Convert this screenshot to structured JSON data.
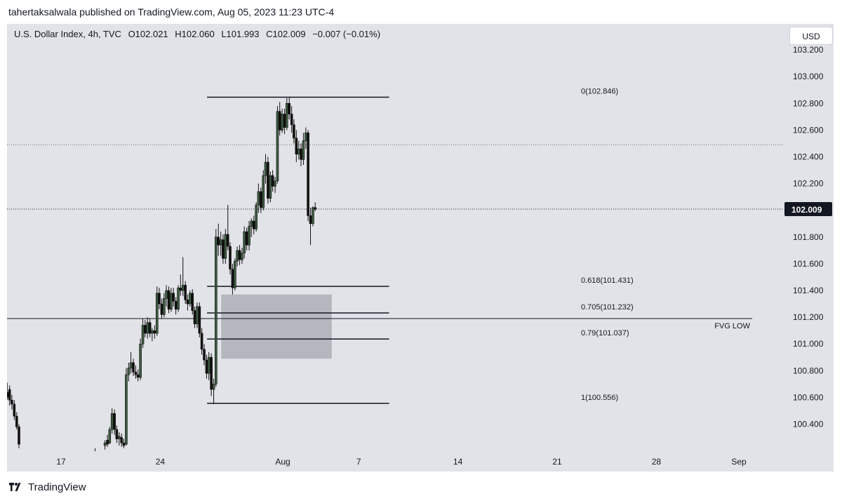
{
  "header": {
    "published_line": "tahertaksalwala published on TradingView.com, Aug 05, 2023 11:23 UTC-4"
  },
  "legend": {
    "symbol": "U.S. Dollar Index, 4h, TVC",
    "open": "O102.021",
    "high": "H102.060",
    "low": "L101.993",
    "close": "C102.009",
    "change": "−0.007 (−0.01%)"
  },
  "currency": "USD",
  "footer": {
    "brand": "TradingView",
    "logo_icon": "tradingview-logo-icon"
  },
  "colors": {
    "background": "#e2e3e8",
    "candle_up": "#3d5c42",
    "candle_down": "#111111",
    "zone_fill": "#a9abb1",
    "price_badge": "#131722"
  },
  "chart_data": {
    "type": "candlestick",
    "title": "U.S. Dollar Index, 4h, TVC",
    "ylim": [
      100.25,
      103.3
    ],
    "x_range_days": [
      13.2,
      35.2
    ],
    "y_ticks": [
      103.2,
      103.0,
      102.8,
      102.6,
      102.4,
      102.2,
      101.8,
      101.6,
      101.4,
      101.2,
      101.0,
      100.8,
      100.6,
      100.4
    ],
    "y_tick_labels": [
      "103.200",
      "103.000",
      "102.800",
      "102.600",
      "102.400",
      "102.200",
      "101.800",
      "101.600",
      "101.400",
      "101.200",
      "101.000",
      "100.800",
      "100.600",
      "100.400"
    ],
    "x_ticks": [
      {
        "label": "17",
        "day": 17
      },
      {
        "label": "24",
        "day": 24
      },
      {
        "label": "Aug",
        "day": 32
      },
      {
        "label": "7",
        "day": 38
      },
      {
        "label": "14",
        "day": 45
      },
      {
        "label": "21",
        "day": 52
      },
      {
        "label": "28",
        "day": 59
      },
      {
        "label": "Sep",
        "day": 63
      }
    ],
    "last_price": 102.009,
    "last_price_label": "102.009",
    "dotted_level": 102.49,
    "fib_levels": [
      {
        "label": "0(102.846)",
        "price": 102.846,
        "day_start": 27.3,
        "day_end": 40.0
      },
      {
        "label": "0.618(101.431)",
        "price": 101.431,
        "day_start": 27.3,
        "day_end": 40.0
      },
      {
        "label": "0.705(101.232)",
        "price": 101.232,
        "day_start": 27.3,
        "day_end": 40.0
      },
      {
        "label": "0.79(101.037)",
        "price": 101.037,
        "day_start": 27.3,
        "day_end": 40.0
      },
      {
        "label": "1(100.556)",
        "price": 100.556,
        "day_start": 27.3,
        "day_end": 40.0
      }
    ],
    "fvg_line": {
      "label": "FVG LOW",
      "price": 101.19
    },
    "zone": {
      "day_start": 28.3,
      "day_end": 36.1,
      "price_top": 101.37,
      "price_bottom": 100.89
    },
    "candles": [
      {
        "d": 13.2,
        "o": 100.64,
        "h": 100.71,
        "l": 100.58,
        "c": 100.6
      },
      {
        "d": 13.37,
        "o": 100.66,
        "h": 100.69,
        "l": 100.54,
        "c": 100.58
      },
      {
        "d": 13.53,
        "o": 100.58,
        "h": 100.62,
        "l": 100.51,
        "c": 100.55
      },
      {
        "d": 13.7,
        "o": 100.55,
        "h": 100.58,
        "l": 100.43,
        "c": 100.46
      },
      {
        "d": 13.87,
        "o": 100.46,
        "h": 100.49,
        "l": 100.36,
        "c": 100.38
      },
      {
        "d": 14.03,
        "o": 100.38,
        "h": 100.4,
        "l": 100.22,
        "c": 100.25
      },
      {
        "d": 15.2,
        "o": 100.1,
        "h": 100.15,
        "l": 100.02,
        "c": 100.08
      },
      {
        "d": 16.5,
        "o": 100.05,
        "h": 100.12,
        "l": 99.98,
        "c": 100.06
      },
      {
        "d": 18.0,
        "o": 100.08,
        "h": 100.13,
        "l": 100.0,
        "c": 100.1
      },
      {
        "d": 19.4,
        "o": 100.12,
        "h": 100.22,
        "l": 100.05,
        "c": 100.18
      },
      {
        "d": 20.1,
        "o": 100.24,
        "h": 100.28,
        "l": 100.21,
        "c": 100.26
      },
      {
        "d": 20.27,
        "o": 100.28,
        "h": 100.32,
        "l": 100.23,
        "c": 100.25
      },
      {
        "d": 20.43,
        "o": 100.26,
        "h": 100.38,
        "l": 100.25,
        "c": 100.36
      },
      {
        "d": 20.6,
        "o": 100.36,
        "h": 100.52,
        "l": 100.33,
        "c": 100.48
      },
      {
        "d": 20.77,
        "o": 100.48,
        "h": 100.51,
        "l": 100.32,
        "c": 100.36
      },
      {
        "d": 20.93,
        "o": 100.36,
        "h": 100.39,
        "l": 100.26,
        "c": 100.29
      },
      {
        "d": 21.1,
        "o": 100.29,
        "h": 100.34,
        "l": 100.24,
        "c": 100.31
      },
      {
        "d": 21.27,
        "o": 100.3,
        "h": 100.33,
        "l": 100.23,
        "c": 100.26
      },
      {
        "d": 21.43,
        "o": 100.26,
        "h": 100.29,
        "l": 100.22,
        "c": 100.24
      },
      {
        "d": 21.6,
        "o": 100.25,
        "h": 100.82,
        "l": 100.24,
        "c": 100.77
      },
      {
        "d": 21.77,
        "o": 100.77,
        "h": 100.86,
        "l": 100.72,
        "c": 100.82
      },
      {
        "d": 21.93,
        "o": 100.82,
        "h": 100.94,
        "l": 100.78,
        "c": 100.86
      },
      {
        "d": 22.1,
        "o": 100.86,
        "h": 100.89,
        "l": 100.76,
        "c": 100.79
      },
      {
        "d": 22.27,
        "o": 100.79,
        "h": 100.84,
        "l": 100.74,
        "c": 100.77
      },
      {
        "d": 22.43,
        "o": 100.77,
        "h": 100.81,
        "l": 100.72,
        "c": 100.75
      },
      {
        "d": 22.6,
        "o": 100.75,
        "h": 101.04,
        "l": 100.73,
        "c": 101.0
      },
      {
        "d": 22.77,
        "o": 101.0,
        "h": 101.19,
        "l": 100.97,
        "c": 101.14
      },
      {
        "d": 22.93,
        "o": 101.14,
        "h": 101.18,
        "l": 101.05,
        "c": 101.08
      },
      {
        "d": 23.1,
        "o": 101.08,
        "h": 101.2,
        "l": 101.04,
        "c": 101.16
      },
      {
        "d": 23.27,
        "o": 101.16,
        "h": 101.19,
        "l": 101.05,
        "c": 101.08
      },
      {
        "d": 23.43,
        "o": 101.08,
        "h": 101.12,
        "l": 101.02,
        "c": 101.1
      },
      {
        "d": 23.6,
        "o": 101.1,
        "h": 101.14,
        "l": 101.04,
        "c": 101.08
      },
      {
        "d": 23.77,
        "o": 101.08,
        "h": 101.43,
        "l": 101.06,
        "c": 101.38
      },
      {
        "d": 23.93,
        "o": 101.38,
        "h": 101.42,
        "l": 101.26,
        "c": 101.3
      },
      {
        "d": 24.1,
        "o": 101.3,
        "h": 101.34,
        "l": 101.19,
        "c": 101.22
      },
      {
        "d": 24.27,
        "o": 101.22,
        "h": 101.38,
        "l": 101.2,
        "c": 101.34
      },
      {
        "d": 24.43,
        "o": 101.34,
        "h": 101.44,
        "l": 101.28,
        "c": 101.4
      },
      {
        "d": 24.6,
        "o": 101.4,
        "h": 101.43,
        "l": 101.23,
        "c": 101.26
      },
      {
        "d": 24.77,
        "o": 101.26,
        "h": 101.42,
        "l": 101.24,
        "c": 101.38
      },
      {
        "d": 24.93,
        "o": 101.38,
        "h": 101.42,
        "l": 101.28,
        "c": 101.32
      },
      {
        "d": 25.1,
        "o": 101.32,
        "h": 101.35,
        "l": 101.22,
        "c": 101.26
      },
      {
        "d": 25.27,
        "o": 101.26,
        "h": 101.44,
        "l": 101.24,
        "c": 101.42
      },
      {
        "d": 25.43,
        "o": 101.42,
        "h": 101.52,
        "l": 101.36,
        "c": 101.4
      },
      {
        "d": 25.6,
        "o": 101.4,
        "h": 101.65,
        "l": 101.36,
        "c": 101.44
      },
      {
        "d": 25.77,
        "o": 101.44,
        "h": 101.47,
        "l": 101.3,
        "c": 101.33
      },
      {
        "d": 25.93,
        "o": 101.33,
        "h": 101.37,
        "l": 101.25,
        "c": 101.3
      },
      {
        "d": 26.1,
        "o": 101.3,
        "h": 101.4,
        "l": 101.28,
        "c": 101.38
      },
      {
        "d": 26.27,
        "o": 101.38,
        "h": 101.41,
        "l": 101.22,
        "c": 101.25
      },
      {
        "d": 26.43,
        "o": 101.25,
        "h": 101.28,
        "l": 101.12,
        "c": 101.15
      },
      {
        "d": 26.6,
        "o": 101.15,
        "h": 101.31,
        "l": 101.12,
        "c": 101.28
      },
      {
        "d": 26.77,
        "o": 101.28,
        "h": 101.31,
        "l": 101.05,
        "c": 101.08
      },
      {
        "d": 26.93,
        "o": 101.08,
        "h": 101.12,
        "l": 100.92,
        "c": 100.96
      },
      {
        "d": 27.1,
        "o": 100.96,
        "h": 101.0,
        "l": 100.84,
        "c": 100.88
      },
      {
        "d": 27.27,
        "o": 100.88,
        "h": 100.92,
        "l": 100.74,
        "c": 100.78
      },
      {
        "d": 27.43,
        "o": 100.78,
        "h": 100.94,
        "l": 100.73,
        "c": 100.9
      },
      {
        "d": 27.6,
        "o": 100.9,
        "h": 100.93,
        "l": 100.61,
        "c": 100.66
      },
      {
        "d": 27.77,
        "o": 100.66,
        "h": 100.74,
        "l": 100.55,
        "c": 100.7
      },
      {
        "d": 27.93,
        "o": 100.7,
        "h": 101.86,
        "l": 100.68,
        "c": 101.8
      },
      {
        "d": 28.1,
        "o": 101.8,
        "h": 101.9,
        "l": 101.66,
        "c": 101.74
      },
      {
        "d": 28.27,
        "o": 101.74,
        "h": 101.84,
        "l": 101.66,
        "c": 101.78
      },
      {
        "d": 28.43,
        "o": 101.78,
        "h": 101.82,
        "l": 101.6,
        "c": 101.64
      },
      {
        "d": 28.6,
        "o": 101.64,
        "h": 101.86,
        "l": 101.6,
        "c": 101.82
      },
      {
        "d": 28.77,
        "o": 101.82,
        "h": 102.04,
        "l": 101.7,
        "c": 101.73
      },
      {
        "d": 28.93,
        "o": 101.73,
        "h": 101.76,
        "l": 101.52,
        "c": 101.56
      },
      {
        "d": 29.1,
        "o": 101.56,
        "h": 101.6,
        "l": 101.37,
        "c": 101.42
      },
      {
        "d": 29.27,
        "o": 101.42,
        "h": 101.64,
        "l": 101.4,
        "c": 101.62
      },
      {
        "d": 29.43,
        "o": 101.62,
        "h": 101.73,
        "l": 101.58,
        "c": 101.7
      },
      {
        "d": 29.6,
        "o": 101.7,
        "h": 101.74,
        "l": 101.59,
        "c": 101.63
      },
      {
        "d": 29.77,
        "o": 101.63,
        "h": 101.72,
        "l": 101.6,
        "c": 101.68
      },
      {
        "d": 29.93,
        "o": 101.68,
        "h": 101.88,
        "l": 101.64,
        "c": 101.84
      },
      {
        "d": 30.1,
        "o": 101.84,
        "h": 101.87,
        "l": 101.7,
        "c": 101.74
      },
      {
        "d": 30.27,
        "o": 101.74,
        "h": 101.92,
        "l": 101.7,
        "c": 101.88
      },
      {
        "d": 30.43,
        "o": 101.88,
        "h": 101.94,
        "l": 101.8,
        "c": 101.92
      },
      {
        "d": 30.6,
        "o": 101.92,
        "h": 101.96,
        "l": 101.82,
        "c": 101.86
      },
      {
        "d": 30.77,
        "o": 101.86,
        "h": 102.06,
        "l": 101.84,
        "c": 102.04
      },
      {
        "d": 30.93,
        "o": 102.04,
        "h": 102.2,
        "l": 101.98,
        "c": 102.14
      },
      {
        "d": 31.1,
        "o": 102.14,
        "h": 102.17,
        "l": 101.98,
        "c": 102.02
      },
      {
        "d": 31.27,
        "o": 102.02,
        "h": 102.3,
        "l": 102.0,
        "c": 102.26
      },
      {
        "d": 31.43,
        "o": 102.26,
        "h": 102.42,
        "l": 102.2,
        "c": 102.36
      },
      {
        "d": 31.6,
        "o": 102.36,
        "h": 102.4,
        "l": 102.05,
        "c": 102.09
      },
      {
        "d": 31.77,
        "o": 102.09,
        "h": 102.29,
        "l": 102.06,
        "c": 102.26
      },
      {
        "d": 31.93,
        "o": 102.26,
        "h": 102.3,
        "l": 102.14,
        "c": 102.18
      },
      {
        "d": 32.1,
        "o": 102.18,
        "h": 102.25,
        "l": 102.13,
        "c": 102.22
      },
      {
        "d": 32.27,
        "o": 102.22,
        "h": 102.78,
        "l": 102.2,
        "c": 102.74
      },
      {
        "d": 32.43,
        "o": 102.74,
        "h": 102.81,
        "l": 102.56,
        "c": 102.6
      },
      {
        "d": 32.6,
        "o": 102.6,
        "h": 102.76,
        "l": 102.58,
        "c": 102.72
      },
      {
        "d": 32.77,
        "o": 102.72,
        "h": 102.76,
        "l": 102.57,
        "c": 102.62
      },
      {
        "d": 32.93,
        "o": 102.62,
        "h": 102.84,
        "l": 102.6,
        "c": 102.8
      },
      {
        "d": 33.1,
        "o": 102.8,
        "h": 102.846,
        "l": 102.68,
        "c": 102.72
      },
      {
        "d": 33.27,
        "o": 102.72,
        "h": 102.78,
        "l": 102.58,
        "c": 102.64
      },
      {
        "d": 33.43,
        "o": 102.64,
        "h": 102.68,
        "l": 102.5,
        "c": 102.54
      },
      {
        "d": 33.6,
        "o": 102.54,
        "h": 102.6,
        "l": 102.36,
        "c": 102.42
      },
      {
        "d": 33.77,
        "o": 102.42,
        "h": 102.52,
        "l": 102.38,
        "c": 102.46
      },
      {
        "d": 33.93,
        "o": 102.46,
        "h": 102.5,
        "l": 102.33,
        "c": 102.38
      },
      {
        "d": 34.1,
        "o": 102.38,
        "h": 102.58,
        "l": 102.34,
        "c": 102.52
      },
      {
        "d": 34.27,
        "o": 102.52,
        "h": 102.62,
        "l": 102.46,
        "c": 102.58
      },
      {
        "d": 34.43,
        "o": 102.58,
        "h": 102.6,
        "l": 101.92,
        "c": 101.96
      },
      {
        "d": 34.6,
        "o": 101.96,
        "h": 102.02,
        "l": 101.74,
        "c": 101.9
      },
      {
        "d": 34.77,
        "o": 101.9,
        "h": 102.03,
        "l": 101.88,
        "c": 102.02
      },
      {
        "d": 34.93,
        "o": 102.021,
        "h": 102.06,
        "l": 101.993,
        "c": 102.009
      }
    ]
  }
}
